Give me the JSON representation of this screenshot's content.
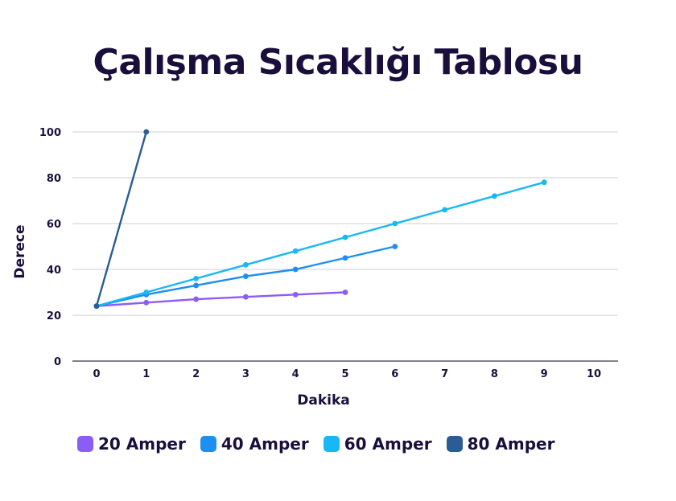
{
  "chart_data": {
    "type": "line",
    "title": "Çalışma Sıcaklığı Tablosu",
    "xlabel": "Dakika",
    "ylabel": "Derece",
    "xlim": [
      0,
      10
    ],
    "ylim": [
      0,
      100
    ],
    "xticks": [
      "0",
      "1",
      "2",
      "3",
      "4",
      "5",
      "6",
      "7",
      "8",
      "9",
      "10"
    ],
    "yticks": [
      "0",
      "20",
      "40",
      "60",
      "80",
      "100"
    ],
    "grid": true,
    "legend_position": "bottom",
    "series": [
      {
        "name": "20 Amper",
        "color": "#8b5cf6",
        "x": [
          0,
          1,
          2,
          3,
          4,
          5
        ],
        "y": [
          24,
          25.5,
          27,
          28,
          29,
          30
        ]
      },
      {
        "name": "40 Amper",
        "color": "#1f8ef1",
        "x": [
          0,
          1,
          2,
          3,
          4,
          5,
          6
        ],
        "y": [
          24,
          29,
          33,
          37,
          40,
          45,
          50
        ]
      },
      {
        "name": "60 Amper",
        "color": "#17b8f5",
        "x": [
          0,
          1,
          2,
          3,
          4,
          5,
          6,
          7,
          8,
          9
        ],
        "y": [
          24,
          30,
          36,
          42,
          48,
          54,
          60,
          66,
          72,
          78
        ]
      },
      {
        "name": "80 Amper",
        "color": "#2a5d95",
        "x": [
          0,
          1
        ],
        "y": [
          24,
          100
        ]
      }
    ]
  }
}
